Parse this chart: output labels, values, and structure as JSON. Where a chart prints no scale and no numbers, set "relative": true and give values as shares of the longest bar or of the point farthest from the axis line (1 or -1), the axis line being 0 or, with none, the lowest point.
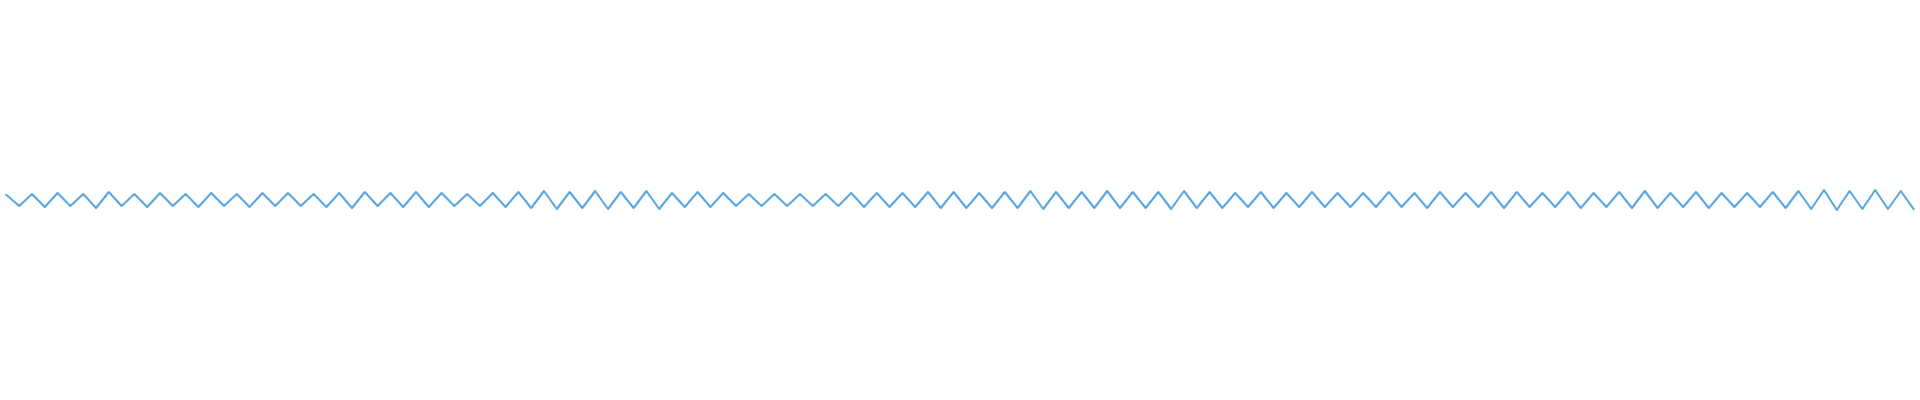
{
  "chart_data": {
    "type": "line",
    "relative": true,
    "color": "#5ba7e0",
    "line_style": "solid",
    "marker": "none",
    "categories": [
      null,
      null,
      null,
      null,
      null,
      null,
      null,
      null,
      null,
      null,
      null,
      null,
      null,
      null,
      null,
      null,
      null,
      null,
      null,
      null,
      null,
      null,
      null,
      null,
      null,
      null,
      null,
      null,
      null,
      null,
      null,
      null,
      null,
      null,
      null,
      null,
      null,
      null,
      null,
      null,
      null,
      null,
      null,
      null,
      null,
      null,
      null,
      null,
      null,
      null,
      null,
      null,
      null,
      null,
      null,
      null,
      null,
      null,
      null,
      null,
      null,
      null,
      null,
      null,
      null,
      null,
      null,
      null,
      null,
      null,
      null,
      null,
      null,
      null,
      null,
      null,
      null,
      null,
      null,
      null,
      null,
      null,
      null,
      null,
      null,
      null,
      null,
      null,
      null,
      null,
      null,
      null,
      null,
      null,
      null,
      null,
      null,
      null,
      null,
      null,
      null,
      null,
      null,
      null,
      null,
      null,
      null,
      null,
      null,
      null,
      null,
      null,
      null,
      null,
      null,
      null,
      null,
      null,
      null,
      null,
      null,
      null,
      null,
      null,
      null,
      null,
      null,
      null,
      null,
      null,
      null,
      null,
      null,
      null,
      null,
      null,
      null,
      null,
      null,
      null,
      null,
      null,
      null,
      null,
      null,
      null,
      null,
      null,
      null,
      null
    ],
    "values": [
      0.75,
      0.2,
      0.8,
      0.15,
      0.85,
      0.2,
      0.8,
      0.1,
      0.9,
      0.2,
      0.8,
      0.15,
      0.85,
      0.2,
      0.8,
      0.15,
      0.85,
      0.2,
      0.8,
      0.15,
      0.85,
      0.2,
      0.85,
      0.2,
      0.8,
      0.15,
      0.85,
      0.1,
      0.9,
      0.2,
      0.85,
      0.15,
      0.9,
      0.15,
      0.85,
      0.2,
      0.8,
      0.2,
      0.85,
      0.15,
      0.9,
      0.1,
      0.95,
      0.05,
      0.9,
      0.1,
      0.95,
      0.05,
      0.9,
      0.1,
      0.95,
      0.05,
      0.85,
      0.15,
      0.9,
      0.15,
      0.85,
      0.2,
      0.8,
      0.2,
      0.8,
      0.2,
      0.8,
      0.2,
      0.8,
      0.2,
      0.85,
      0.15,
      0.85,
      0.15,
      0.85,
      0.15,
      0.9,
      0.1,
      0.9,
      0.1,
      0.85,
      0.1,
      0.9,
      0.1,
      0.95,
      0.05,
      0.9,
      0.1,
      0.9,
      0.1,
      0.95,
      0.1,
      0.9,
      0.1,
      0.9,
      0.05,
      0.95,
      0.1,
      0.9,
      0.1,
      0.85,
      0.15,
      0.9,
      0.1,
      0.85,
      0.15,
      0.9,
      0.15,
      0.85,
      0.15,
      0.85,
      0.15,
      0.9,
      0.15,
      0.85,
      0.1,
      0.9,
      0.15,
      0.85,
      0.15,
      0.9,
      0.1,
      0.9,
      0.15,
      0.85,
      0.15,
      0.9,
      0.1,
      0.85,
      0.15,
      0.9,
      0.1,
      0.95,
      0.1,
      0.85,
      0.15,
      0.9,
      0.1,
      0.85,
      0.15,
      0.85,
      0.15,
      0.9,
      0.1,
      0.95,
      0.05,
      1.0,
      0.0,
      0.95,
      0.05,
      1.0,
      0.05,
      0.95,
      0.05
    ]
  }
}
